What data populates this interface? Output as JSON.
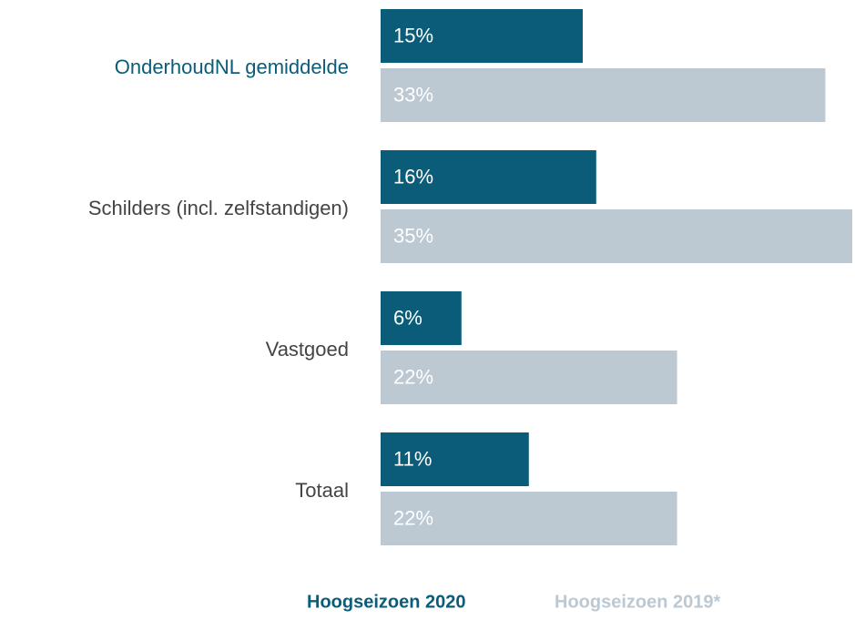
{
  "chart_data": {
    "type": "hbar",
    "categories": [
      "OnderhoudNL gemiddelde",
      "Schilders (incl. zelfstandigen)",
      "Vastgoed",
      "Totaal"
    ],
    "category_colors": [
      "#0b5c78",
      "#444444",
      "#444444",
      "#444444"
    ],
    "series": [
      {
        "name": "Hoogseizoen 2020",
        "color": "#0b5c78",
        "values": [
          15,
          16,
          6,
          11
        ],
        "value_labels": [
          "15%",
          "16%",
          "6%",
          "11%"
        ]
      },
      {
        "name": "Hoogseizoen 2019*",
        "color": "#bcc8d2",
        "values": [
          33,
          35,
          22,
          22
        ],
        "value_labels": [
          "33%",
          "35%",
          "22%",
          "22%"
        ]
      }
    ],
    "legend": "bottom"
  }
}
